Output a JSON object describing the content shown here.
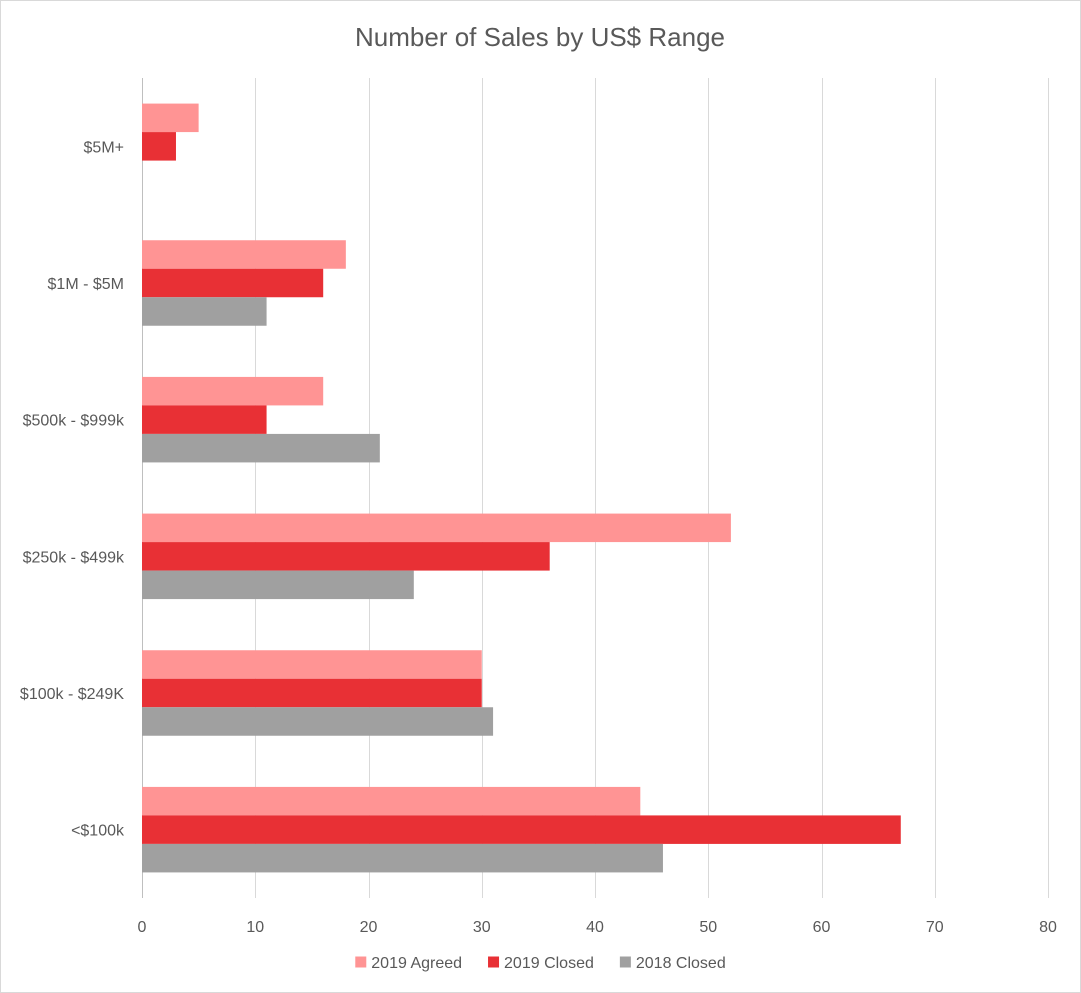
{
  "chart_data": {
    "type": "bar",
    "orientation": "horizontal",
    "title": "Number of Sales by US$ Range",
    "xlabel": "",
    "ylabel": "",
    "categories": [
      "$5M+",
      "$1M - $5M",
      "$500k - $999k",
      "$250k - $499k",
      "$100k - $249K",
      "<$100k"
    ],
    "series": [
      {
        "name": "2019 Agreed",
        "color": "#ff9494",
        "values": [
          5,
          18,
          16,
          52,
          30,
          44
        ]
      },
      {
        "name": "2019 Closed",
        "color": "#e83035",
        "values": [
          3,
          16,
          11,
          36,
          30,
          67
        ]
      },
      {
        "name": "2018 Closed",
        "color": "#a0a0a0",
        "values": [
          0,
          11,
          21,
          24,
          31,
          46
        ]
      }
    ],
    "xlim": [
      0,
      80
    ],
    "xticks": [
      0,
      10,
      20,
      30,
      40,
      50,
      60,
      70,
      80
    ],
    "grid": true,
    "legend_position": "bottom"
  }
}
